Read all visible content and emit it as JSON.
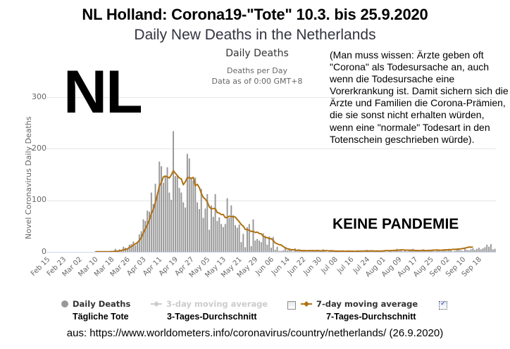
{
  "header": {
    "title": "NL Holland: Corona19-\"Tote\" 10.3. bis 25.9.2020",
    "subtitle": "Daily New Deaths in the Netherlands"
  },
  "overlay": {
    "big_label": "NL",
    "note": "(Man muss wissen: Ärzte geben oft \"Corona\" als Todesursache an, auch wenn die Todesursache eine Vorerkrankung ist. Damit sichern sich die Ärzte und Familien die Corona-Prämien, die sie sonst nicht erhalten würden, wenn eine \"normale\" Todesart in den Totenschein geschrieben würde).",
    "stamp": "KEINE PANDEMIE"
  },
  "legend": {
    "items": [
      {
        "label": "Daily Deaths",
        "sub": "Tägliche Tote",
        "color": "#999999",
        "icon": "circle-marker-icon",
        "active": true
      },
      {
        "label": "3-day moving average",
        "sub": "3-Tages-Durchschnitt",
        "color": "#cccccc",
        "icon": "line-marker-icon",
        "active": false,
        "checked": false
      },
      {
        "label": "7-day moving average",
        "sub": "7-Tages-Durchschnitt",
        "color": "#b07010",
        "icon": "line-marker-icon",
        "active": true,
        "checked": true
      }
    ]
  },
  "source": "aus: https://www.worldometers.info/coronavirus/country/netherlands/ (26.9.2020)",
  "colors": {
    "bar": "#999999",
    "avg7": "#b07010",
    "grid": "#e6e6e6",
    "axis": "#ccd6eb"
  },
  "chart_data": {
    "type": "bar",
    "title": "Daily Deaths",
    "subtitle": "Deaths per Day\nData as of 0:00 GMT+8",
    "subtitle_lines": [
      "Deaths per Day",
      "Data as of 0:00 GMT+8"
    ],
    "xlabel": "",
    "ylabel": "Novel Coronavirus Daily Deaths",
    "ylim": [
      0,
      300
    ],
    "yticks": [
      0,
      100,
      200,
      300
    ],
    "grid": true,
    "legend_position": "bottom",
    "x_start": "Feb 15",
    "x_end": "Sep 25",
    "xtick_labels": [
      "Feb 15",
      "Feb 23",
      "Mar 02",
      "Mar 10",
      "Mar 18",
      "Mar 26",
      "Apr 03",
      "Apr 11",
      "Apr 19",
      "Apr 27",
      "May 05",
      "May 13",
      "May 21",
      "May 29",
      "Jun 06",
      "Jun 14",
      "Jun 22",
      "Jun 30",
      "Jul 08",
      "Jul 16",
      "Jul 24",
      "Aug 01",
      "Aug 09",
      "Aug 17",
      "Aug 25",
      "Sep 02",
      "Sep 10",
      "Sep 18"
    ],
    "series": [
      {
        "name": "Daily Deaths",
        "type": "bar",
        "values": [
          0,
          0,
          0,
          0,
          0,
          0,
          0,
          0,
          0,
          0,
          0,
          0,
          0,
          0,
          0,
          0,
          0,
          0,
          0,
          0,
          0,
          0,
          0,
          0,
          1,
          0,
          0,
          1,
          0,
          1,
          0,
          0,
          2,
          1,
          6,
          0,
          5,
          4,
          10,
          8,
          7,
          14,
          15,
          20,
          13,
          19,
          34,
          40,
          63,
          60,
          80,
          78,
          115,
          93,
          132,
          112,
          175,
          166,
          134,
          148,
          164,
          115,
          101,
          234,
          147,
          148,
          124,
          115,
          96,
          86,
          190,
          181,
          142,
          138,
          144,
          96,
          83,
          122,
          66,
          84,
          112,
          43,
          90,
          68,
          112,
          60,
          67,
          54,
          48,
          54,
          104,
          66,
          90,
          71,
          52,
          47,
          53,
          19,
          35,
          9,
          48,
          54,
          11,
          63,
          22,
          25,
          22,
          19,
          36,
          31,
          14,
          30,
          8,
          29,
          4,
          10,
          2,
          2,
          3,
          9,
          3,
          6,
          4,
          1,
          7,
          3,
          3,
          1,
          3,
          3,
          1,
          3,
          1,
          3,
          2,
          4,
          1,
          2,
          5,
          2,
          0,
          2,
          4,
          1,
          3,
          0,
          2,
          1,
          0,
          1,
          3,
          1,
          2,
          0,
          2,
          3,
          0,
          1,
          0,
          1,
          4,
          2,
          1,
          2,
          1,
          3,
          1,
          3,
          2,
          1,
          0,
          2,
          2,
          1,
          4,
          6,
          2,
          3,
          1,
          4,
          1,
          3,
          5,
          6,
          2,
          4,
          3,
          1,
          5,
          2,
          1,
          4,
          2,
          3,
          1,
          5,
          2,
          1,
          3,
          4,
          2,
          6,
          3,
          1,
          2,
          4,
          5,
          3,
          2,
          6,
          4,
          3,
          5,
          7,
          4,
          6,
          8,
          5,
          7,
          9,
          14,
          10,
          15,
          5,
          6
        ],
        "color": "#999999"
      },
      {
        "name": "7-day moving average",
        "type": "line",
        "values": [
          null,
          null,
          null,
          null,
          null,
          null,
          null,
          null,
          null,
          null,
          null,
          null,
          null,
          null,
          null,
          null,
          null,
          null,
          null,
          null,
          null,
          null,
          null,
          null,
          0.3,
          0.3,
          0.3,
          0.4,
          0.3,
          0.4,
          0.4,
          0.4,
          0.6,
          0.7,
          1.6,
          1.3,
          2.1,
          2.6,
          4.0,
          4.9,
          5.7,
          8.7,
          10.4,
          13.3,
          15.7,
          18.0,
          22.4,
          28.1,
          36.6,
          44.7,
          52.7,
          61.9,
          74.3,
          82.7,
          96.0,
          110.1,
          127.6,
          134.4,
          145.3,
          147.1,
          145.1,
          143.3,
          149.3,
          157.3,
          152.4,
          148.0,
          143.3,
          141.4,
          130.2,
          136.0,
          143.9,
          144.0,
          142.4,
          144.3,
          128.4,
          131.0,
          124.8,
          113.4,
          105.6,
          102.4,
          97.0,
          87.3,
          83.6,
          84.0,
          84.1,
          76.1,
          75.3,
          72.4,
          72.4,
          66.3,
          66.9,
          69.3,
          68.3,
          68.1,
          67.7,
          62.9,
          58.4,
          53.0,
          50.0,
          43.7,
          43.0,
          42.0,
          39.6,
          40.0,
          37.6,
          38.4,
          35.7,
          35.1,
          30.6,
          28.4,
          27.6,
          25.5,
          25.7,
          22.1,
          17.6,
          15.7,
          14.0,
          13.6,
          10.3,
          8.4,
          6.0,
          5.6,
          4.1,
          4.3,
          3.3,
          3.1,
          3.6,
          2.4,
          2.6,
          2.6,
          2.3,
          2.6,
          2.4,
          2.6,
          2.3,
          2.6,
          2.4,
          2.1,
          2.4,
          2.3,
          2.4,
          2.1,
          1.9,
          2.0,
          1.4,
          1.6,
          1.3,
          1.4,
          1.7,
          1.1,
          1.3,
          1.3,
          1.3,
          1.4,
          1.0,
          1.3,
          1.3,
          1.6,
          1.7,
          1.9,
          1.6,
          1.9,
          2.0,
          1.9,
          1.6,
          1.7,
          1.6,
          1.7,
          1.9,
          2.4,
          2.6,
          2.4,
          2.6,
          2.7,
          3.0,
          3.0,
          3.6,
          4.0,
          3.9,
          3.6,
          3.4,
          3.4,
          3.0,
          3.1,
          2.9,
          2.7,
          2.6,
          2.6,
          3.0,
          2.7,
          2.6,
          2.9,
          3.1,
          3.4,
          3.6,
          3.6,
          3.4,
          3.1,
          3.7,
          4.0,
          4.1,
          4.1,
          4.4,
          4.9,
          5.0,
          5.3,
          5.7,
          6.0,
          6.6,
          7.3,
          8.4,
          9.4,
          9.1,
          9.6
        ],
        "color": "#b07010"
      }
    ]
  }
}
